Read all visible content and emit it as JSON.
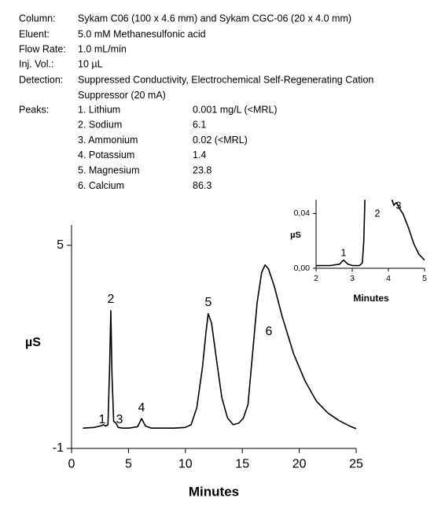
{
  "header": {
    "rows": [
      {
        "label": "Column:",
        "value": [
          "Sykam C06 (100 x 4.6 mm) and Sykam CGC-06 (20 x 4.0 mm)"
        ]
      },
      {
        "label": "Eluent:",
        "value": [
          "5.0 mM Methanesulfonic acid"
        ]
      },
      {
        "label": "Flow Rate:",
        "value": [
          "1.0 mL/min"
        ]
      },
      {
        "label": "Inj. Vol.:",
        "value": [
          "10 µL"
        ]
      },
      {
        "label": "Detection:",
        "value": [
          "Suppressed Conductivity, Electrochemical Self-Regenerating Cation",
          "Suppressor (20 mA)"
        ]
      }
    ]
  },
  "peaks": {
    "label": "Peaks:",
    "rows": [
      {
        "name": "1. Lithium",
        "amount": "0.001 mg/L (<MRL)"
      },
      {
        "name": "2. Sodium",
        "amount": "6.1"
      },
      {
        "name": "3. Ammonium",
        "amount": "0.02 (<MRL)"
      },
      {
        "name": "4. Potassium",
        "amount": "1.4"
      },
      {
        "name": "5. Magnesium",
        "amount": "23.8"
      },
      {
        "name": "6. Calcium",
        "amount": "86.3"
      }
    ]
  },
  "chart_data": [
    {
      "type": "line",
      "x_label": "Minutes",
      "y_label": "µS",
      "color": "#000000",
      "xlim": [
        0,
        25
      ],
      "xticks": [
        0,
        5,
        10,
        15,
        20,
        25
      ],
      "ylim": [
        -1,
        5.6
      ],
      "yticks": [
        5,
        -1
      ],
      "peak_labels": [
        "1",
        "2",
        "3",
        "4",
        "5",
        "6"
      ],
      "x": [
        1,
        2,
        2.6,
        2.8,
        3.0,
        3.2,
        3.35,
        3.45,
        3.55,
        3.7,
        3.9,
        4.1,
        4.5,
        5,
        5.8,
        6.15,
        6.5,
        7,
        8,
        9,
        10,
        10.5,
        11,
        11.5,
        11.8,
        12.0,
        12.3,
        12.7,
        13.2,
        13.7,
        14.2,
        14.7,
        15.1,
        15.5,
        15.9,
        16.3,
        16.7,
        17.0,
        17.3,
        17.8,
        18.5,
        19.5,
        20.5,
        21.5,
        22.5,
        23.5,
        24.5,
        25
      ],
      "values": [
        -0.4,
        -0.38,
        -0.33,
        -0.3,
        -0.34,
        -0.3,
        1.5,
        3.07,
        1.2,
        -0.2,
        -0.25,
        -0.38,
        -0.4,
        -0.4,
        -0.36,
        -0.12,
        -0.34,
        -0.4,
        -0.4,
        -0.4,
        -0.38,
        -0.3,
        0.2,
        1.4,
        2.4,
        2.98,
        2.7,
        1.7,
        0.5,
        -0.1,
        -0.3,
        -0.25,
        -0.1,
        0.3,
        1.8,
        3.3,
        4.2,
        4.42,
        4.3,
        3.8,
        2.9,
        1.8,
        1.0,
        0.4,
        0.05,
        -0.18,
        -0.35,
        -0.42
      ]
    },
    {
      "type": "line",
      "x_label": "Minutes",
      "y_label": "µS",
      "color": "#000000",
      "xlim": [
        2,
        5
      ],
      "xticks": [
        2,
        3,
        4,
        5
      ],
      "ylim": [
        0,
        0.05
      ],
      "yticks": [
        {
          "value": 0.04,
          "label": "0,04"
        },
        {
          "value": 0,
          "label": "0,00"
        }
      ],
      "peak_labels": [
        "1",
        "2",
        "3"
      ],
      "x": [
        2,
        2.4,
        2.65,
        2.76,
        2.88,
        3.0,
        3.2,
        3.28,
        3.32,
        3.35,
        3.7,
        4.1,
        4.15,
        4.22,
        4.3,
        4.4,
        4.55,
        4.7,
        4.85,
        5
      ],
      "values": [
        0.002,
        0.002,
        0.003,
        0.006,
        0.003,
        0.002,
        0.002,
        0.004,
        0.02,
        0.05,
        null,
        0.05,
        0.046,
        0.048,
        0.044,
        0.04,
        0.03,
        0.018,
        0.01,
        0.006
      ]
    }
  ]
}
